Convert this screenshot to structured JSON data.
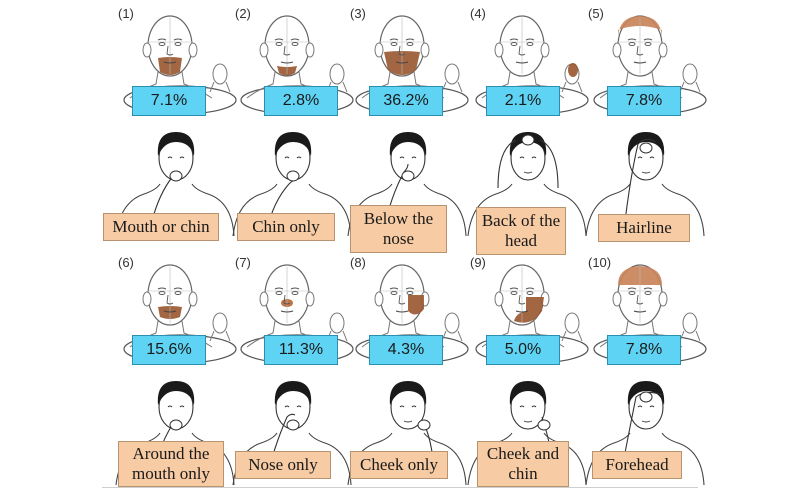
{
  "panels": [
    {
      "number": "(1)",
      "percent": "7.1%",
      "label": "Mouth or chin",
      "region": "mouth-chin",
      "highlight": "#9a5a32"
    },
    {
      "number": "(2)",
      "percent": "2.8%",
      "label": "Chin only",
      "region": "chin",
      "highlight": "#9a5a32"
    },
    {
      "number": "(3)",
      "percent": "36.2%",
      "label": "Below the nose",
      "region": "below-nose",
      "highlight": "#9a5a32"
    },
    {
      "number": "(4)",
      "percent": "2.1%",
      "label": "Back of the head",
      "region": "back-head",
      "highlight": "#9a5a32"
    },
    {
      "number": "(5)",
      "percent": "7.8%",
      "label": "Hairline",
      "region": "hairline",
      "highlight": "#c9835a"
    },
    {
      "number": "(6)",
      "percent": "15.6%",
      "label": "Around the mouth only",
      "region": "mouth",
      "highlight": "#9a5a32"
    },
    {
      "number": "(7)",
      "percent": "11.3%",
      "label": "Nose only",
      "region": "nose",
      "highlight": "#b86a3a"
    },
    {
      "number": "(8)",
      "percent": "4.3%",
      "label": "Cheek only",
      "region": "cheek",
      "highlight": "#9a5a32"
    },
    {
      "number": "(9)",
      "percent": "5.0%",
      "label": "Cheek and chin",
      "region": "cheek-chin",
      "highlight": "#9a5a32"
    },
    {
      "number": "(10)",
      "percent": "7.8%",
      "label": "Forehead",
      "region": "forehead",
      "highlight": "#c9835a"
    }
  ],
  "colors": {
    "percent_box": "#5fd3f3",
    "label_box": "#f7cba3",
    "highlight": "#9a5a32"
  }
}
